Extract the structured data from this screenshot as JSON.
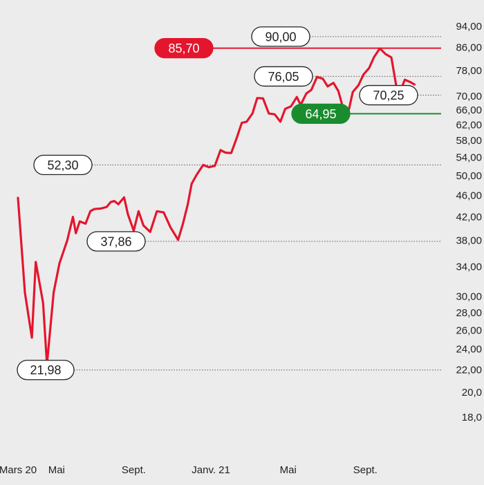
{
  "chart_data": {
    "type": "line",
    "title": "",
    "xlabel": "",
    "ylabel": "",
    "y_scale": "log",
    "ylim": [
      16.5,
      96
    ],
    "grid": false,
    "colors": {
      "line": "#e3162d",
      "resistance": "#e3162d",
      "support": "#1a8c2e",
      "dotted": "#555555",
      "background": "#ececec"
    },
    "y_ticks": [
      "94,00",
      "86,00",
      "78,00",
      "70,00",
      "66,00",
      "62,00",
      "58,00",
      "54,00",
      "50,00",
      "46,00",
      "42,00",
      "38,00",
      "34,00",
      "30,00",
      "28,00",
      "26,00",
      "24,00",
      "22,00",
      "20,0",
      "18,0"
    ],
    "y_tick_values": [
      94,
      86,
      78,
      70,
      66,
      62,
      58,
      54,
      50,
      46,
      42,
      38,
      34,
      30,
      28,
      26,
      24,
      22,
      20,
      18
    ],
    "x_ticks": [
      "Mars 20",
      "Mai",
      "Sept.",
      "Janv. 21",
      "Mai",
      "Sept."
    ],
    "x_tick_positions": [
      0,
      2,
      6,
      10,
      14,
      18
    ],
    "x_range": [
      0,
      21.5
    ],
    "series": [
      {
        "x": [
          0,
          0.36,
          0.72,
          0.92,
          1.3,
          1.5,
          1.85,
          2.15,
          2.55,
          2.85,
          3.0,
          3.2,
          3.5,
          3.75,
          3.95,
          4.3,
          4.6,
          4.8,
          5.0,
          5.2,
          5.5,
          5.7,
          6.0,
          6.25,
          6.5,
          6.85,
          7.2,
          7.55,
          7.9,
          8.3,
          8.55,
          8.8,
          9.0,
          9.25,
          9.6,
          9.9,
          10.2,
          10.5,
          10.75,
          11.05,
          11.35,
          11.6,
          11.85,
          12.15,
          12.4,
          12.7,
          13.0,
          13.3,
          13.6,
          13.85,
          14.15,
          14.45,
          14.65,
          14.95,
          15.2,
          15.5,
          15.8,
          16.05,
          16.35,
          16.6,
          16.8,
          17.1,
          17.35,
          17.65,
          17.9,
          18.2,
          18.45,
          18.75,
          19.05,
          19.35,
          19.7,
          20.05,
          20.35,
          20.55
        ],
        "y": [
          45.5,
          30.5,
          25.2,
          34.7,
          29.2,
          22.5,
          30.5,
          34.5,
          38.0,
          42.0,
          39.2,
          41.2,
          40.8,
          43.0,
          43.4,
          43.5,
          43.8,
          44.7,
          44.9,
          44.3,
          45.6,
          42.4,
          39.6,
          43.0,
          40.5,
          39.4,
          43.0,
          42.8,
          40.2,
          38.1,
          40.8,
          44.3,
          48.3,
          50.1,
          52.3,
          51.8,
          52.1,
          55.7,
          55.1,
          55.0,
          58.8,
          62.5,
          62.8,
          65.0,
          69.4,
          69.3,
          65.0,
          64.8,
          62.8,
          66.3,
          67.0,
          69.7,
          67.4,
          70.8,
          71.8,
          75.9,
          75.3,
          72.9,
          74.0,
          71.5,
          67.5,
          64.9,
          71.2,
          73.3,
          76.6,
          78.8,
          82.5,
          85.6,
          83.6,
          82.4,
          69.8,
          75.0,
          74.2,
          73.5
        ]
      }
    ],
    "reference_lines": [
      {
        "value": 90.0,
        "label": "90,00",
        "style": "dotted"
      },
      {
        "value": 85.7,
        "label": "85,70",
        "style": "resistance"
      },
      {
        "value": 76.05,
        "label": "76,05",
        "style": "dotted"
      },
      {
        "value": 70.25,
        "label": "70,25",
        "style": "dotted"
      },
      {
        "value": 64.95,
        "label": "64,95",
        "style": "support"
      },
      {
        "value": 52.3,
        "label": "52,30",
        "style": "dotted"
      },
      {
        "value": 37.86,
        "label": "37,86",
        "style": "dotted"
      },
      {
        "value": 21.98,
        "label": "21,98",
        "style": "dotted"
      }
    ]
  }
}
